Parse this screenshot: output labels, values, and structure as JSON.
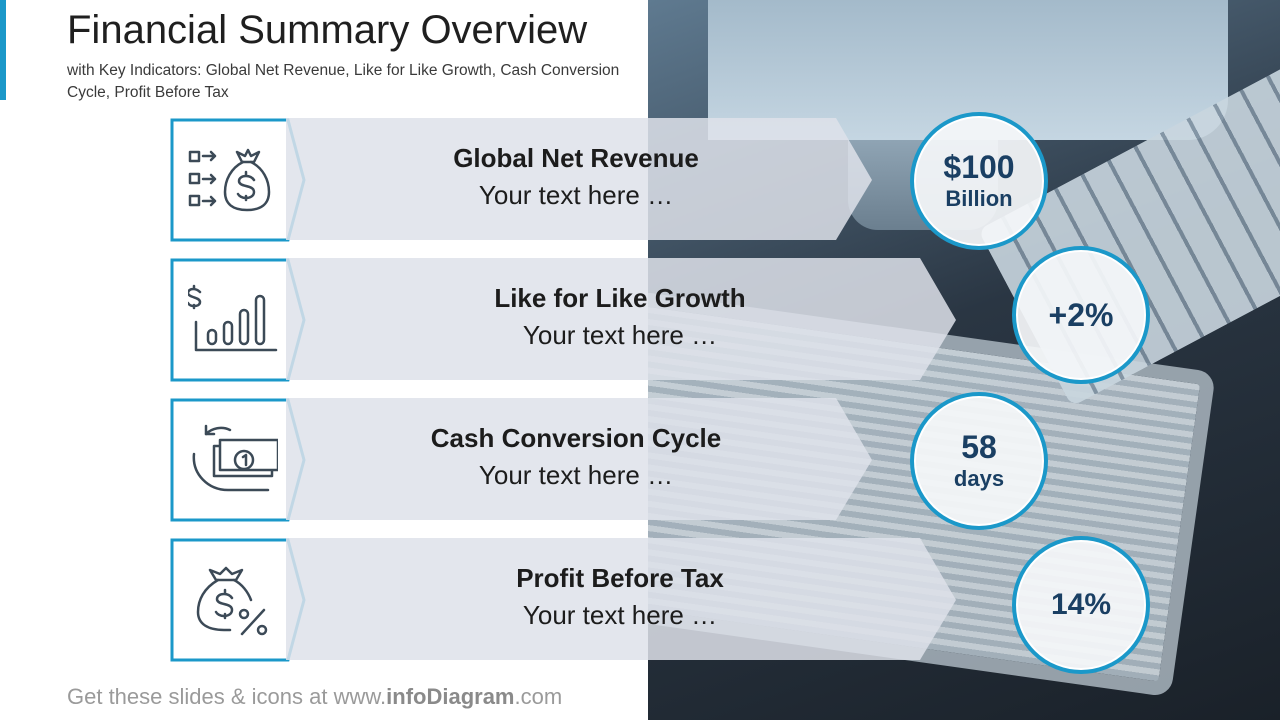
{
  "title": "Financial Summary Overview",
  "subtitle_prefix": "with Key Indicators:",
  "subtitle_rest": "Global Net Revenue, Like for Like Growth, Cash Conversion Cycle, Profit Before Tax",
  "colors": {
    "accent": "#1b98c9",
    "value_text": "#1a3f63"
  },
  "rows": [
    {
      "icon": "money-bag-flow-icon",
      "title": "Global Net Revenue",
      "text": "Your text here …",
      "value": "$100",
      "unit": "Billion"
    },
    {
      "icon": "growth-chart-icon",
      "title": "Like for Like Growth",
      "text": "Your text here …",
      "value": "+2%",
      "unit": ""
    },
    {
      "icon": "cash-cycle-icon",
      "title": "Cash Conversion Cycle",
      "text": "Your text here …",
      "value": "58",
      "unit": "days"
    },
    {
      "icon": "money-bag-percent-icon",
      "title": "Profit Before Tax",
      "text": "Your text here …",
      "value": "14%",
      "unit": ""
    }
  ],
  "footer": {
    "prefix": "Get these slides & icons at www.",
    "brand": "infoDiagram",
    "suffix": ".com"
  }
}
